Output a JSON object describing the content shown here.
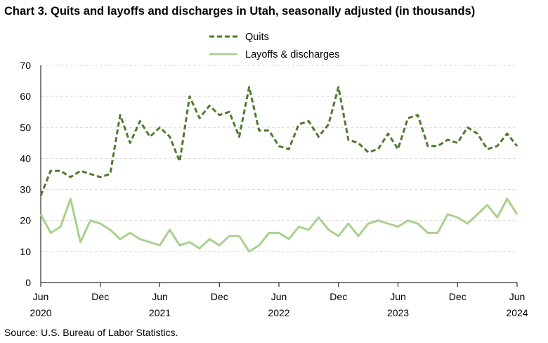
{
  "title": "Chart 3. Quits and layoffs and discharges in Utah, seasonally adjusted (in thousands)",
  "source": "Source: U.S. Bureau of Labor Statistics.",
  "colors": {
    "quits": "#4f7a2e",
    "layoffs": "#a9d18e",
    "grid": "#d9d9d9",
    "axis": "#000000"
  },
  "chart_data": {
    "type": "line",
    "x": [
      "2020-06",
      "2020-07",
      "2020-08",
      "2020-09",
      "2020-10",
      "2020-11",
      "2020-12",
      "2021-01",
      "2021-02",
      "2021-03",
      "2021-04",
      "2021-05",
      "2021-06",
      "2021-07",
      "2021-08",
      "2021-09",
      "2021-10",
      "2021-11",
      "2021-12",
      "2022-01",
      "2022-02",
      "2022-03",
      "2022-04",
      "2022-05",
      "2022-06",
      "2022-07",
      "2022-08",
      "2022-09",
      "2022-10",
      "2022-11",
      "2022-12",
      "2023-01",
      "2023-02",
      "2023-03",
      "2023-04",
      "2023-05",
      "2023-06",
      "2023-07",
      "2023-08",
      "2023-09",
      "2023-10",
      "2023-11",
      "2023-12",
      "2024-01",
      "2024-02",
      "2024-03",
      "2024-04",
      "2024-05",
      "2024-06"
    ],
    "series": [
      {
        "name": "Quits",
        "style": "dashed",
        "values": [
          28,
          36,
          36,
          34,
          36,
          35,
          34,
          35,
          54,
          45,
          52,
          47,
          50,
          47,
          39,
          60,
          53,
          57,
          54,
          55,
          47,
          63,
          49,
          49,
          44,
          43,
          51,
          52,
          47,
          51,
          63,
          46,
          45,
          42,
          43,
          48,
          43,
          53,
          54,
          44,
          44,
          46,
          45,
          50,
          48,
          43,
          44,
          48,
          44
        ]
      },
      {
        "name": "Layoffs & discharges",
        "style": "solid",
        "values": [
          22,
          16,
          18,
          27,
          13,
          20,
          19,
          17,
          14,
          16,
          14,
          13,
          12,
          17,
          12,
          13,
          11,
          14,
          12,
          15,
          15,
          10,
          12,
          16,
          16,
          14,
          18,
          17,
          21,
          17,
          15,
          19,
          15,
          19,
          20,
          19,
          18,
          20,
          19,
          16,
          16,
          22,
          21,
          19,
          22,
          25,
          21,
          27,
          22
        ]
      }
    ],
    "x_ticks": [
      {
        "month": "Jun",
        "year": "2020"
      },
      {
        "month": "Dec",
        "year": ""
      },
      {
        "month": "Jun",
        "year": "2021"
      },
      {
        "month": "Dec",
        "year": ""
      },
      {
        "month": "Jun",
        "year": "2022"
      },
      {
        "month": "Dec",
        "year": ""
      },
      {
        "month": "Jun",
        "year": "2023"
      },
      {
        "month": "Dec",
        "year": ""
      },
      {
        "month": "Jun",
        "year": "2024"
      }
    ],
    "ylim": [
      0,
      70
    ],
    "y_ticks": [
      0,
      10,
      20,
      30,
      40,
      50,
      60,
      70
    ],
    "grid": true,
    "legend_position": "top-center",
    "xlabel": "",
    "ylabel": ""
  }
}
